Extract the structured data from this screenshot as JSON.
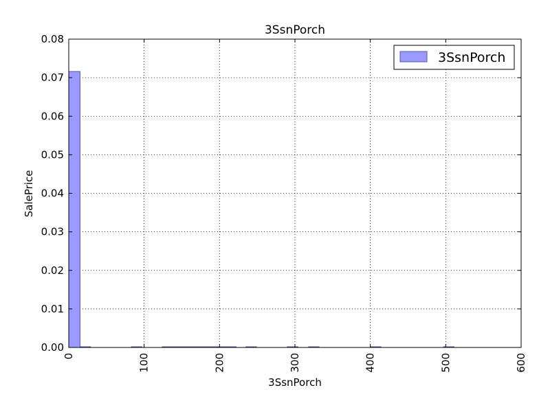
{
  "chart_data": {
    "type": "bar",
    "title": "3SsnPorch",
    "xlabel": "3SsnPorch",
    "ylabel": "SalePrice",
    "xlim": [
      0,
      600
    ],
    "ylim": [
      0,
      0.08
    ],
    "x_ticks": [
      0,
      100,
      200,
      300,
      400,
      500,
      600
    ],
    "x_tick_labels": [
      "0",
      "100",
      "200",
      "300",
      "400",
      "500",
      "600"
    ],
    "y_ticks": [
      0,
      0.01,
      0.02,
      0.03,
      0.04,
      0.05,
      0.06,
      0.07,
      0.08
    ],
    "y_tick_labels": [
      "0.00",
      "0.01",
      "0.02",
      "0.03",
      "0.04",
      "0.05",
      "0.06",
      "0.07",
      "0.08"
    ],
    "grid": true,
    "legend_position": "top-right",
    "series": [
      {
        "name": "3SsnPorch",
        "color": "#9999ff",
        "edge_color": "#5555aa",
        "bins": [
          {
            "x0": 0,
            "x1": 15,
            "value": 0.0716
          },
          {
            "x0": 15,
            "x1": 29,
            "value": 0.0001
          },
          {
            "x0": 83,
            "x1": 97,
            "value": 5e-05
          },
          {
            "x0": 124,
            "x1": 138,
            "value": 5e-05
          },
          {
            "x0": 138,
            "x1": 152,
            "value": 5e-05
          },
          {
            "x0": 152,
            "x1": 166,
            "value": 5e-05
          },
          {
            "x0": 166,
            "x1": 180,
            "value": 5e-05
          },
          {
            "x0": 180,
            "x1": 194,
            "value": 5e-05
          },
          {
            "x0": 194,
            "x1": 208,
            "value": 5e-05
          },
          {
            "x0": 208,
            "x1": 222,
            "value": 5e-05
          },
          {
            "x0": 235,
            "x1": 249,
            "value": 5e-05
          },
          {
            "x0": 290,
            "x1": 304,
            "value": 5e-05
          },
          {
            "x0": 318,
            "x1": 332,
            "value": 5e-05
          },
          {
            "x0": 400,
            "x1": 414,
            "value": 5e-05
          },
          {
            "x0": 497,
            "x1": 511,
            "value": 5e-05
          }
        ]
      }
    ]
  }
}
